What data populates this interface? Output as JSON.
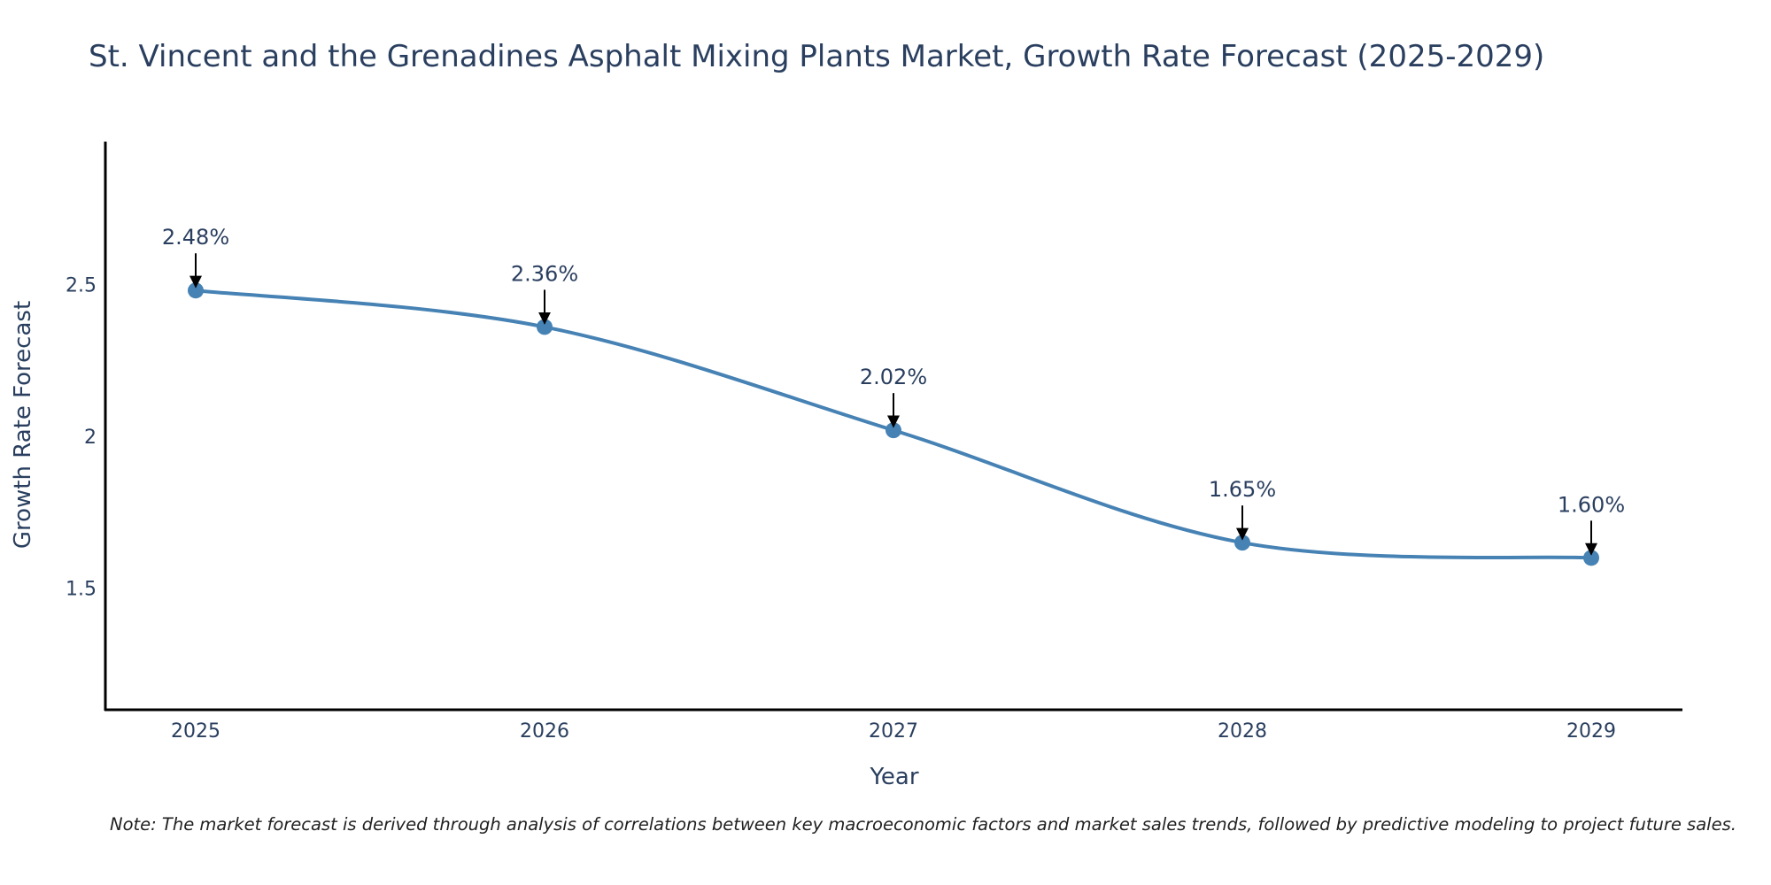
{
  "chart_data": {
    "type": "line",
    "title": "St. Vincent and the Grenadines Asphalt Mixing Plants Market, Growth Rate Forecast (2025-2029)",
    "xlabel": "Year",
    "ylabel": "Growth Rate Forecast",
    "categories": [
      "2025",
      "2026",
      "2027",
      "2028",
      "2029"
    ],
    "values": [
      2.48,
      2.36,
      2.02,
      1.65,
      1.6
    ],
    "data_labels": [
      "2.48%",
      "2.36%",
      "2.02%",
      "1.65%",
      "1.60%"
    ],
    "yticks": [
      1.5,
      2,
      2.5
    ],
    "ytick_labels": [
      "1.5",
      "2",
      "2.5"
    ],
    "ylim": [
      1.1,
      2.97
    ],
    "grid": false,
    "line_shape": "spline",
    "note": "Note: The market forecast is derived through analysis of correlations between key macroeconomic factors and market sales trends, followed by predictive modeling to project future sales."
  },
  "colors": {
    "line": "#4682b4",
    "marker": "#4682b4",
    "text": "#2a3f5f",
    "axis": "#000000",
    "arrow": "#000000"
  }
}
